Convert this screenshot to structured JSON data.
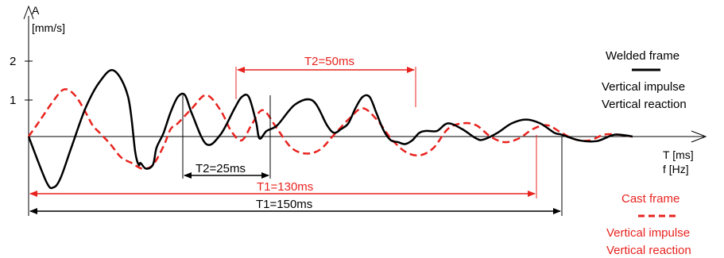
{
  "chart_data": {
    "type": "line",
    "title": "",
    "ylabel": "A",
    "yunit": "[mm/s]",
    "xlabel": "T [ms]",
    "xlabel2": "f [Hz]",
    "yticks": [
      {
        "value": 2,
        "label": "2"
      },
      {
        "value": 1,
        "label": "1"
      }
    ],
    "xlim": [
      0,
      172
    ],
    "ylim": [
      -1.95,
      3.2
    ],
    "series": [
      {
        "name": "Welded frame",
        "color": "#000000",
        "style": "solid",
        "x": [
          0,
          5,
          7,
          9,
          12,
          16,
          20,
          24,
          28,
          30,
          31,
          31.5,
          33,
          35,
          36,
          38,
          40,
          42,
          44,
          46,
          50,
          54,
          58,
          60,
          62,
          64,
          65,
          67,
          70,
          75,
          80,
          84,
          86,
          88,
          90,
          92,
          94,
          96,
          98,
          100,
          102,
          104,
          106,
          108,
          110,
          112,
          115,
          118,
          122,
          126,
          128,
          132,
          136,
          140,
          144,
          148,
          150,
          155,
          160,
          165,
          170
        ],
        "y": [
          0,
          -1.2,
          -1.35,
          -1.1,
          -0.3,
          0.75,
          1.45,
          1.75,
          1.05,
          -0.4,
          -0.75,
          -0.7,
          -0.85,
          -0.75,
          -0.3,
          0.1,
          0.65,
          1.05,
          1.1,
          0.6,
          -0.2,
          0.05,
          0.75,
          1.05,
          1.05,
          0.4,
          -0.05,
          0.15,
          0.3,
          0.85,
          0.95,
          0.3,
          0.1,
          0.2,
          0.35,
          0.75,
          1.05,
          1.05,
          0.6,
          0.15,
          -0.1,
          -0.15,
          -0.2,
          -0.1,
          0.1,
          0.15,
          0.15,
          0.35,
          0.2,
          -0.05,
          -0.08,
          0.1,
          0.35,
          0.45,
          0.35,
          0.1,
          0.05,
          -0.1,
          -0.12,
          0.05,
          0
        ]
      },
      {
        "name": "Cast frame",
        "color": "#e8231f",
        "style": "dashed",
        "x": [
          0,
          3,
          7,
          10,
          13,
          16,
          18,
          20,
          23,
          26,
          29,
          32,
          35,
          38,
          40,
          42,
          46,
          50,
          54,
          57,
          60,
          63,
          66,
          70,
          74,
          78,
          82,
          86,
          90,
          94,
          98,
          102,
          106,
          110,
          114,
          118,
          122,
          126,
          130,
          134,
          138,
          142,
          146,
          150,
          154,
          158,
          162,
          166,
          170
        ],
        "y": [
          0,
          0.4,
          0.95,
          1.25,
          1.1,
          0.65,
          0.3,
          0.1,
          -0.2,
          -0.55,
          -0.7,
          -0.85,
          -0.75,
          -0.25,
          0.2,
          0.35,
          0.75,
          1.1,
          0.7,
          0.15,
          -0.1,
          0.35,
          0.7,
          0.2,
          -0.3,
          -0.45,
          -0.35,
          0.05,
          0.45,
          0.75,
          0.45,
          -0.05,
          -0.4,
          -0.5,
          -0.3,
          0.2,
          0.35,
          0.3,
          0.0,
          -0.15,
          -0.05,
          0.2,
          0.3,
          0.1,
          -0.08,
          -0.1,
          0.05,
          0.05,
          0
        ]
      }
    ],
    "annotations": [
      {
        "text": "T2=50ms",
        "color": "#e8231f"
      },
      {
        "text": "T2=25ms",
        "color": "#000000"
      },
      {
        "text": "T1=130ms",
        "color": "#e8231f"
      },
      {
        "text": "T1=150ms",
        "color": "#000000"
      }
    ],
    "legend": {
      "welded_title": "Welded frame",
      "welded_line1": "Vertical impulse",
      "welded_line2": "Vertical reaction",
      "cast_title": "Cast frame",
      "cast_line1": "Vertical impulse",
      "cast_line2": "Vertical reaction"
    },
    "grid": false,
    "legend_placement": "right"
  }
}
